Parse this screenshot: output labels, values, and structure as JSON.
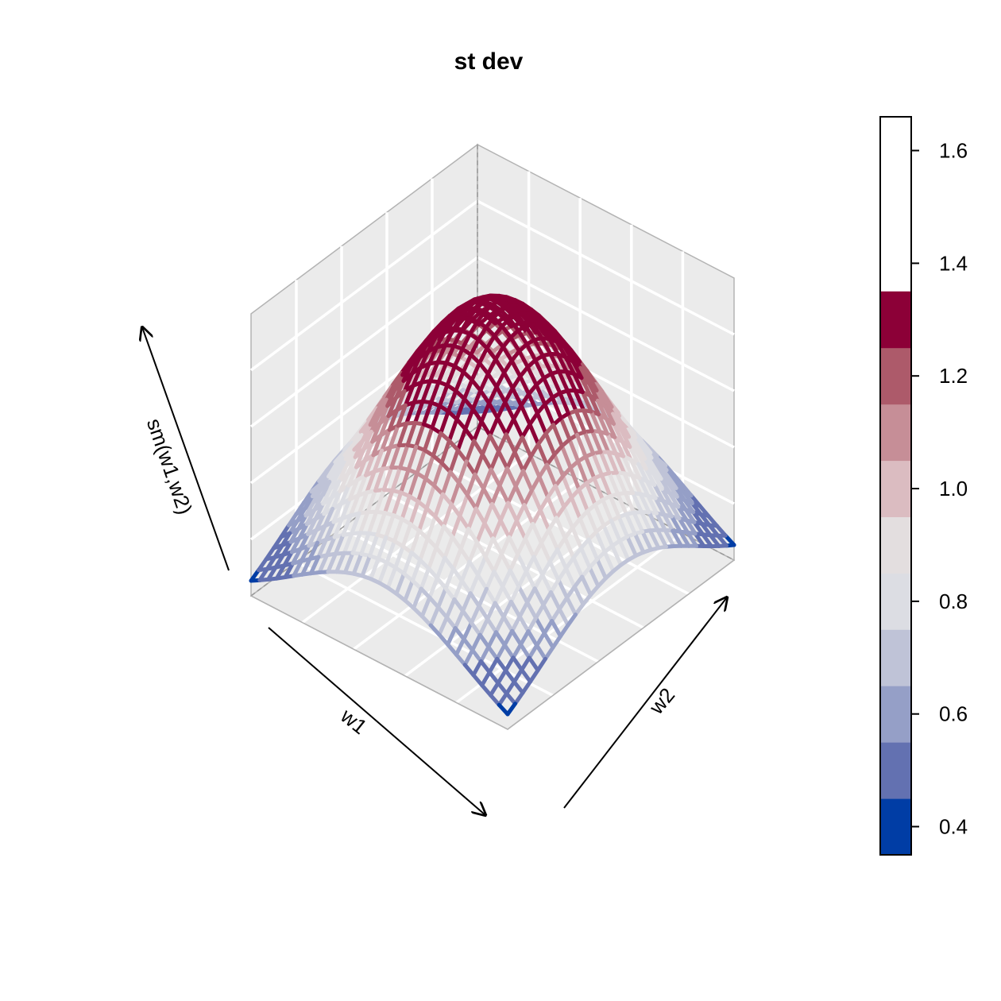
{
  "chart_data": {
    "type": "surface3d",
    "title": "st dev",
    "xlabel": "w1",
    "ylabel": "w2",
    "zlabel": "sm(w1,w2)",
    "surface": {
      "shape": "gaussian-peak",
      "peak_value": 1.62,
      "edge_mid_value": 0.72,
      "corner_value": 0.42,
      "grid_lines_per_axis": 30
    },
    "colorkey": {
      "breaks": [
        0.35,
        0.45,
        0.55,
        0.65,
        0.75,
        0.85,
        0.95,
        1.05,
        1.15,
        1.25,
        1.35,
        1.45,
        1.55,
        1.66
      ],
      "colors": [
        "#003da5",
        "#6371b1",
        "#959fc7",
        "#bfc3d7",
        "#dcdde3",
        "#e3dedf",
        "#dbbcc1",
        "#c68e97",
        "#ad5a6a",
        "#8c0037"
      ],
      "tick_values": [
        0.4,
        0.6,
        0.8,
        1.0,
        1.2,
        1.4,
        1.6
      ],
      "tick_labels": [
        "0.4",
        "0.6",
        "0.8",
        "1.0",
        "1.2",
        "1.4",
        "1.6"
      ],
      "placement": "right"
    },
    "panel_fill": "#ebebeb",
    "grid": true
  }
}
